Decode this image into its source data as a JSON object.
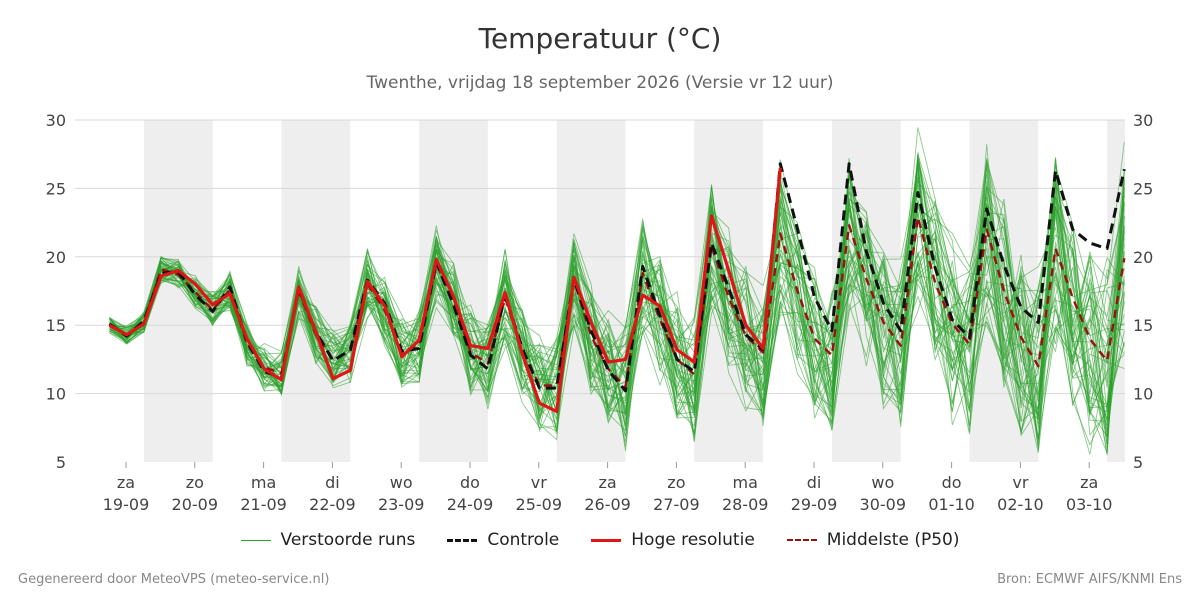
{
  "colors": {
    "members": "#2ca02c",
    "control": "#111111",
    "hires": "#e01515",
    "median": "#9b1010",
    "band": "#eeeeee",
    "grid": "#d8d8d8"
  },
  "legend": [
    {
      "label": "Verstoorde runs",
      "style": "members"
    },
    {
      "label": "Controle",
      "style": "control"
    },
    {
      "label": "Hoge resolutie",
      "style": "hires"
    },
    {
      "label": "Middelste (P50)",
      "style": "median"
    }
  ],
  "footer": {
    "left": "Gegenereerd door MeteoVPS (meteo-service.nl)",
    "right": "Bron: ECMWF AIFS/KNMI Ens"
  },
  "chart_data": {
    "type": "line",
    "title": "Temperatuur (°C)",
    "subtitle": "Twenthe, vrijdag 18 september 2026 (Versie vr 12 uur)",
    "ylim": [
      5,
      30
    ],
    "yticks": [
      5,
      10,
      15,
      20,
      25,
      30
    ],
    "x_unit": "hours since 2026-09-18 12:00, 6-hourly steps",
    "xlim": [
      0,
      372
    ],
    "grid": true,
    "legend_position": "bottom",
    "days": [
      {
        "weekday": "za",
        "date": "19-09"
      },
      {
        "weekday": "zo",
        "date": "20-09"
      },
      {
        "weekday": "ma",
        "date": "21-09"
      },
      {
        "weekday": "di",
        "date": "22-09"
      },
      {
        "weekday": "wo",
        "date": "23-09"
      },
      {
        "weekday": "do",
        "date": "24-09"
      },
      {
        "weekday": "vr",
        "date": "25-09"
      },
      {
        "weekday": "za",
        "date": "26-09"
      },
      {
        "weekday": "zo",
        "date": "27-09"
      },
      {
        "weekday": "ma",
        "date": "28-09"
      },
      {
        "weekday": "di",
        "date": "29-09"
      },
      {
        "weekday": "wo",
        "date": "30-09"
      },
      {
        "weekday": "do",
        "date": "01-10"
      },
      {
        "weekday": "vr",
        "date": "02-10"
      },
      {
        "weekday": "za",
        "date": "03-10"
      }
    ],
    "series": [
      {
        "name": "Hoge resolutie",
        "style": "hires",
        "values": [
          15,
          14.3,
          15.1,
          18.6,
          19,
          18,
          16.5,
          17.3,
          14,
          11.8,
          11,
          17.8,
          14.5,
          11.1,
          11.7,
          18.2,
          16.4,
          12.7,
          13.9,
          19.8,
          17.1,
          13.5,
          13.3,
          17.4,
          12.9,
          9.3,
          8.7,
          18.5,
          15.2,
          12.3,
          12.5,
          17.2,
          16.4,
          13.2,
          12.3,
          23,
          19,
          15,
          13.3,
          26.5
        ]
      },
      {
        "name": "Controle",
        "style": "control",
        "values": [
          15.1,
          14.2,
          15.3,
          18.8,
          18.9,
          17.2,
          16,
          17.8,
          13.8,
          11.6,
          11.2,
          17.7,
          14.5,
          12.4,
          13.2,
          18.3,
          16.6,
          13.1,
          13.3,
          19.6,
          16.5,
          12.8,
          11.8,
          17.2,
          13.3,
          10.4,
          10.4,
          18.4,
          14.6,
          11.7,
          10.2,
          19.3,
          15.7,
          12.5,
          11.6,
          21,
          17.7,
          14.3,
          13.2,
          26.8,
          22,
          17,
          14.6,
          26.8,
          20.4,
          16.6,
          14.6,
          24.7,
          19.2,
          15.4,
          14.1,
          23.5,
          19.4,
          16.3,
          15.2,
          26.3,
          22,
          21,
          20.6,
          26.4
        ]
      },
      {
        "name": "Middelste (P50)",
        "style": "median",
        "values": [
          15,
          14.3,
          15.2,
          19.1,
          18.7,
          17.4,
          16.1,
          17.6,
          13.6,
          11.9,
          11.5,
          17.5,
          14.3,
          12.5,
          13.1,
          18,
          16.1,
          12.9,
          13.6,
          19.5,
          16.8,
          13,
          12.2,
          17,
          13.1,
          10.6,
          10.6,
          18.3,
          14.2,
          11.8,
          10.5,
          18.8,
          15.4,
          12.5,
          11.4,
          20.8,
          17,
          14.2,
          13,
          21.7,
          17.5,
          14,
          12.8,
          22.3,
          18.4,
          15.2,
          13.5,
          22.9,
          18.1,
          15.1,
          13.6,
          22,
          17.5,
          14.1,
          12,
          20.6,
          17,
          14,
          12.4,
          19.9
        ]
      }
    ]
  }
}
